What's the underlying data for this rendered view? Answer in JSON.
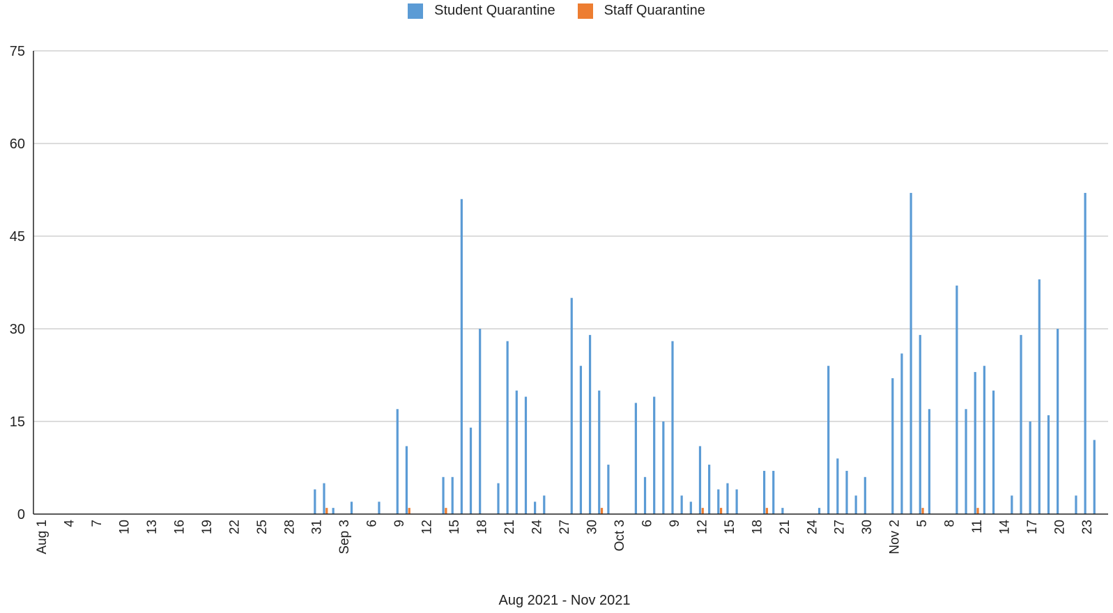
{
  "chart_data": {
    "type": "bar",
    "title": "",
    "xlabel": "Aug 2021 - Nov 2021",
    "ylabel": "",
    "ylim": [
      0,
      75
    ],
    "yticks": [
      0,
      15,
      30,
      45,
      60,
      75
    ],
    "grid": true,
    "legend_position": "top-center",
    "x_start": "2021-08-01",
    "x_end": "2021-11-23",
    "x_tick_labels": [
      "Aug 1",
      "4",
      "7",
      "10",
      "13",
      "16",
      "19",
      "22",
      "25",
      "28",
      "31",
      "Sep 3",
      "6",
      "9",
      "12",
      "15",
      "18",
      "21",
      "24",
      "27",
      "30",
      "Oct 3",
      "6",
      "9",
      "12",
      "15",
      "18",
      "21",
      "24",
      "27",
      "30",
      "Nov 2",
      "5",
      "8",
      "11",
      "14",
      "17",
      "20",
      "23"
    ],
    "series": [
      {
        "name": "Student Quarantine",
        "color": "#5b9bd5",
        "points": [
          {
            "x": "2021-08-31",
            "y": 4
          },
          {
            "x": "2021-09-01",
            "y": 5
          },
          {
            "x": "2021-09-02",
            "y": 1
          },
          {
            "x": "2021-09-04",
            "y": 2
          },
          {
            "x": "2021-09-07",
            "y": 2
          },
          {
            "x": "2021-09-09",
            "y": 17
          },
          {
            "x": "2021-09-10",
            "y": 11
          },
          {
            "x": "2021-09-14",
            "y": 6
          },
          {
            "x": "2021-09-15",
            "y": 6
          },
          {
            "x": "2021-09-16",
            "y": 51
          },
          {
            "x": "2021-09-17",
            "y": 14
          },
          {
            "x": "2021-09-18",
            "y": 30
          },
          {
            "x": "2021-09-20",
            "y": 5
          },
          {
            "x": "2021-09-21",
            "y": 28
          },
          {
            "x": "2021-09-22",
            "y": 20
          },
          {
            "x": "2021-09-23",
            "y": 19
          },
          {
            "x": "2021-09-24",
            "y": 2
          },
          {
            "x": "2021-09-25",
            "y": 3
          },
          {
            "x": "2021-09-28",
            "y": 35
          },
          {
            "x": "2021-09-29",
            "y": 24
          },
          {
            "x": "2021-09-30",
            "y": 29
          },
          {
            "x": "2021-10-01",
            "y": 20
          },
          {
            "x": "2021-10-02",
            "y": 8
          },
          {
            "x": "2021-10-05",
            "y": 18
          },
          {
            "x": "2021-10-06",
            "y": 6
          },
          {
            "x": "2021-10-07",
            "y": 19
          },
          {
            "x": "2021-10-08",
            "y": 15
          },
          {
            "x": "2021-10-09",
            "y": 28
          },
          {
            "x": "2021-10-10",
            "y": 3
          },
          {
            "x": "2021-10-11",
            "y": 2
          },
          {
            "x": "2021-10-12",
            "y": 11
          },
          {
            "x": "2021-10-13",
            "y": 8
          },
          {
            "x": "2021-10-14",
            "y": 4
          },
          {
            "x": "2021-10-15",
            "y": 5
          },
          {
            "x": "2021-10-16",
            "y": 4
          },
          {
            "x": "2021-10-19",
            "y": 7
          },
          {
            "x": "2021-10-20",
            "y": 7
          },
          {
            "x": "2021-10-21",
            "y": 1
          },
          {
            "x": "2021-10-25",
            "y": 1
          },
          {
            "x": "2021-10-26",
            "y": 24
          },
          {
            "x": "2021-10-27",
            "y": 9
          },
          {
            "x": "2021-10-28",
            "y": 7
          },
          {
            "x": "2021-10-29",
            "y": 3
          },
          {
            "x": "2021-10-30",
            "y": 6
          },
          {
            "x": "2021-11-02",
            "y": 22
          },
          {
            "x": "2021-11-03",
            "y": 26
          },
          {
            "x": "2021-11-04",
            "y": 52
          },
          {
            "x": "2021-11-05",
            "y": 29
          },
          {
            "x": "2021-11-06",
            "y": 17
          },
          {
            "x": "2021-11-09",
            "y": 37
          },
          {
            "x": "2021-11-10",
            "y": 17
          },
          {
            "x": "2021-11-11",
            "y": 23
          },
          {
            "x": "2021-11-12",
            "y": 24
          },
          {
            "x": "2021-11-13",
            "y": 20
          },
          {
            "x": "2021-11-15",
            "y": 3
          },
          {
            "x": "2021-11-16",
            "y": 29
          },
          {
            "x": "2021-11-17",
            "y": 15
          },
          {
            "x": "2021-11-18",
            "y": 38
          },
          {
            "x": "2021-11-19",
            "y": 16
          },
          {
            "x": "2021-11-20",
            "y": 30
          },
          {
            "x": "2021-11-22",
            "y": 3
          },
          {
            "x": "2021-11-23",
            "y": 52
          },
          {
            "x": "2021-11-24",
            "y": 12
          }
        ]
      },
      {
        "name": "Staff Quarantine",
        "color": "#ed7d31",
        "points": [
          {
            "x": "2021-09-01",
            "y": 1
          },
          {
            "x": "2021-09-10",
            "y": 1
          },
          {
            "x": "2021-09-14",
            "y": 1
          },
          {
            "x": "2021-10-01",
            "y": 1
          },
          {
            "x": "2021-10-12",
            "y": 1
          },
          {
            "x": "2021-10-14",
            "y": 1
          },
          {
            "x": "2021-10-19",
            "y": 1
          },
          {
            "x": "2021-11-05",
            "y": 1
          },
          {
            "x": "2021-11-11",
            "y": 1
          }
        ]
      }
    ]
  }
}
